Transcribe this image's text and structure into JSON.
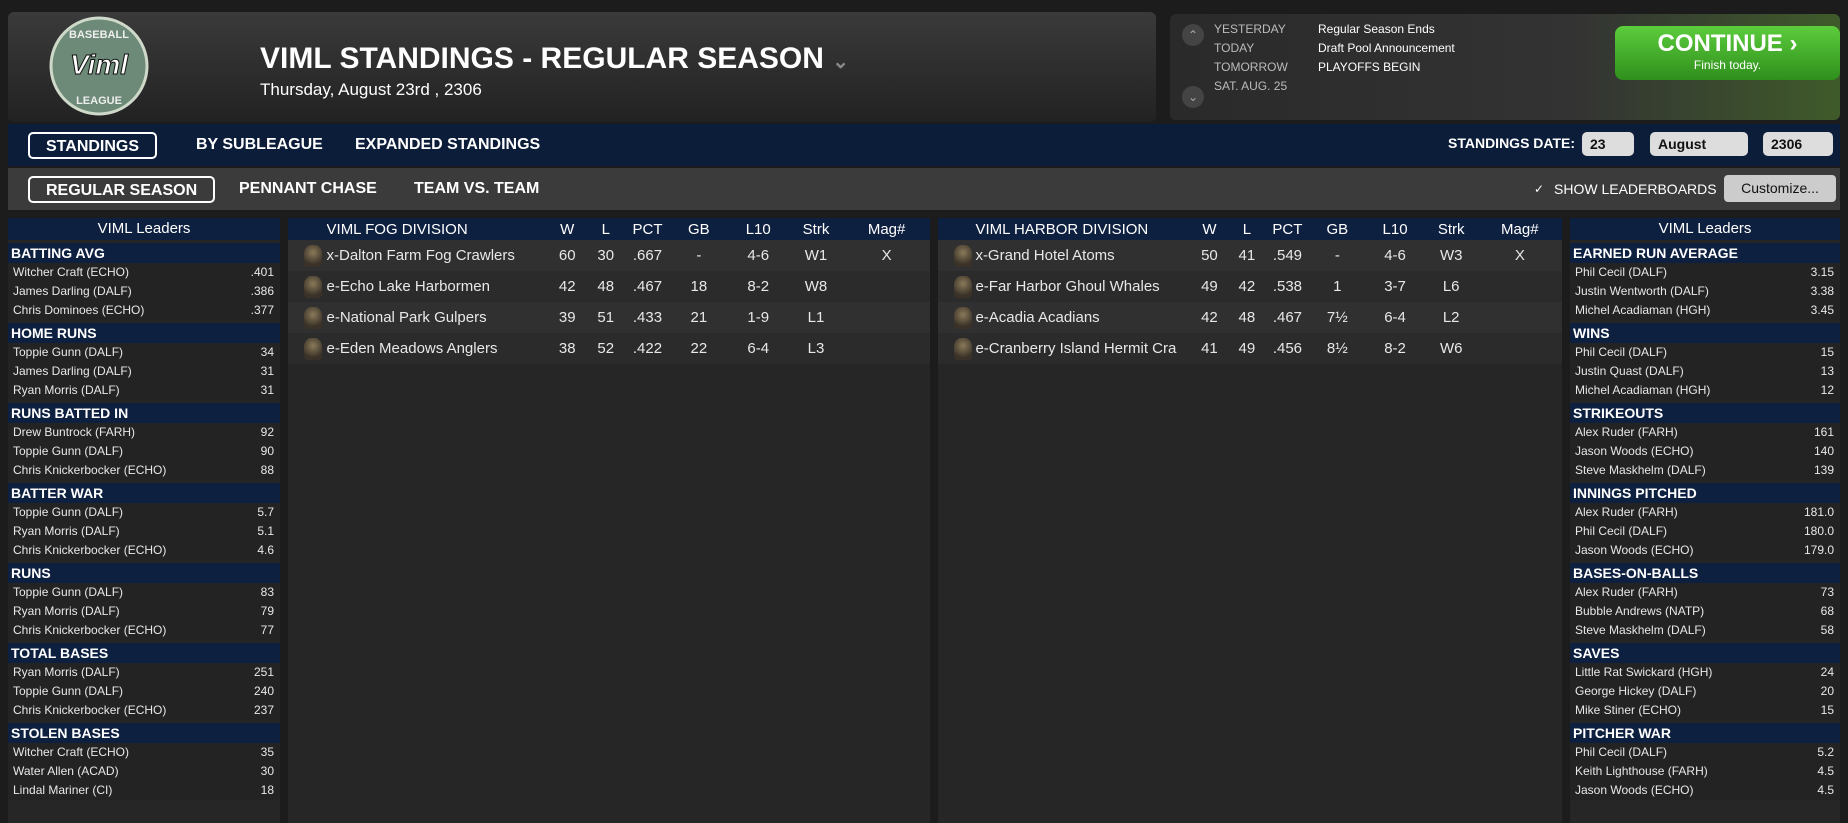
{
  "header": {
    "logo": {
      "top": "BASEBALL",
      "mark": "Viml",
      "bottom": "LEAGUE"
    },
    "title": "VIML STANDINGS - REGULAR SEASON",
    "date": "Thursday, August 23rd , 2306"
  },
  "schedule": [
    {
      "label": "YESTERDAY",
      "event": "Regular Season Ends"
    },
    {
      "label": "TODAY",
      "event": "Draft Pool Announcement"
    },
    {
      "label": "TOMORROW",
      "event": "PLAYOFFS BEGIN"
    },
    {
      "label": "SAT. AUG. 25"
    }
  ],
  "continue": {
    "label": "CONTINUE",
    "sub": "Finish today."
  },
  "tabs": [
    "STANDINGS",
    "BY SUBLEAGUE",
    "EXPANDED STANDINGS"
  ],
  "standings_date": {
    "label": "STANDINGS DATE:",
    "day": "23",
    "month": "August",
    "year": "2306"
  },
  "subtabs": [
    "REGULAR SEASON",
    "PENNANT CHASE",
    "TEAM VS. TEAM"
  ],
  "show_leaderboards": "SHOW LEADERBOARDS",
  "customize": "Customize...",
  "left_leaders": {
    "title": "VIML Leaders",
    "groups": [
      {
        "name": "BATTING AVG",
        "entries": [
          [
            "Witcher Craft (ECHO)",
            ".401"
          ],
          [
            "James Darling (DALF)",
            ".386"
          ],
          [
            "Chris Dominoes (ECHO)",
            ".377"
          ]
        ]
      },
      {
        "name": "HOME RUNS",
        "entries": [
          [
            "Toppie Gunn (DALF)",
            "34"
          ],
          [
            "James Darling (DALF)",
            "31"
          ],
          [
            "Ryan Morris (DALF)",
            "31"
          ]
        ]
      },
      {
        "name": "RUNS BATTED IN",
        "entries": [
          [
            "Drew Buntrock (FARH)",
            "92"
          ],
          [
            "Toppie Gunn (DALF)",
            "90"
          ],
          [
            "Chris Knickerbocker (ECHO)",
            "88"
          ]
        ]
      },
      {
        "name": "BATTER WAR",
        "entries": [
          [
            "Toppie Gunn (DALF)",
            "5.7"
          ],
          [
            "Ryan Morris (DALF)",
            "5.1"
          ],
          [
            "Chris Knickerbocker (ECHO)",
            "4.6"
          ]
        ]
      },
      {
        "name": "RUNS",
        "entries": [
          [
            "Toppie Gunn (DALF)",
            "83"
          ],
          [
            "Ryan Morris (DALF)",
            "79"
          ],
          [
            "Chris Knickerbocker (ECHO)",
            "77"
          ]
        ]
      },
      {
        "name": "TOTAL BASES",
        "entries": [
          [
            "Ryan Morris (DALF)",
            "251"
          ],
          [
            "Toppie Gunn (DALF)",
            "240"
          ],
          [
            "Chris Knickerbocker (ECHO)",
            "237"
          ]
        ]
      },
      {
        "name": "STOLEN BASES",
        "entries": [
          [
            "Witcher Craft (ECHO)",
            "35"
          ],
          [
            "Water Allen (ACAD)",
            "30"
          ],
          [
            "Lindal Mariner (CI)",
            "18"
          ]
        ]
      }
    ]
  },
  "right_leaders": {
    "title": "VIML Leaders",
    "groups": [
      {
        "name": "EARNED RUN AVERAGE",
        "entries": [
          [
            "Phil Cecil (DALF)",
            "3.15"
          ],
          [
            "Justin Wentworth (DALF)",
            "3.38"
          ],
          [
            "Michel Acadiaman (HGH)",
            "3.45"
          ]
        ]
      },
      {
        "name": "WINS",
        "entries": [
          [
            "Phil Cecil (DALF)",
            "15"
          ],
          [
            "Justin Quast (DALF)",
            "13"
          ],
          [
            "Michel Acadiaman (HGH)",
            "12"
          ]
        ]
      },
      {
        "name": "STRIKEOUTS",
        "entries": [
          [
            "Alex Ruder (FARH)",
            "161"
          ],
          [
            "Jason Woods (ECHO)",
            "140"
          ],
          [
            "Steve Maskhelm (DALF)",
            "139"
          ]
        ]
      },
      {
        "name": "INNINGS PITCHED",
        "entries": [
          [
            "Alex Ruder (FARH)",
            "181.0"
          ],
          [
            "Phil Cecil (DALF)",
            "180.0"
          ],
          [
            "Jason Woods (ECHO)",
            "179.0"
          ]
        ]
      },
      {
        "name": "BASES-ON-BALLS",
        "entries": [
          [
            "Alex Ruder (FARH)",
            "73"
          ],
          [
            "Bubble Andrews (NATP)",
            "68"
          ],
          [
            "Steve Maskhelm (DALF)",
            "58"
          ]
        ]
      },
      {
        "name": "SAVES",
        "entries": [
          [
            "Little Rat Swickard (HGH)",
            "24"
          ],
          [
            "George Hickey (DALF)",
            "20"
          ],
          [
            "Mike Stiner (ECHO)",
            "15"
          ]
        ]
      },
      {
        "name": "PITCHER WAR",
        "entries": [
          [
            "Phil Cecil (DALF)",
            "5.2"
          ],
          [
            "Keith Lighthouse (FARH)",
            "4.5"
          ],
          [
            "Jason Woods (ECHO)",
            "4.5"
          ]
        ]
      }
    ]
  },
  "divisions": [
    {
      "columns": [
        "VIML FOG DIVISION",
        "W",
        "L",
        "PCT",
        "GB",
        "L10",
        "Strk",
        "Mag#"
      ],
      "rows": [
        [
          "x-Dalton Farm Fog Crawlers",
          "60",
          "30",
          ".667",
          "-",
          "4-6",
          "W1",
          "X"
        ],
        [
          "e-Echo Lake Harbormen",
          "42",
          "48",
          ".467",
          "18",
          "8-2",
          "W8"
        ],
        [
          "e-National Park Gulpers",
          "39",
          "51",
          ".433",
          "21",
          "1-9",
          "L1"
        ],
        [
          "e-Eden Meadows Anglers",
          "38",
          "52",
          ".422",
          "22",
          "6-4",
          "L3"
        ]
      ]
    },
    {
      "columns": [
        "VIML HARBOR DIVISION",
        "W",
        "L",
        "PCT",
        "GB",
        "L10",
        "Strk",
        "Mag#"
      ],
      "rows": [
        [
          "x-Grand Hotel Atoms",
          "50",
          "41",
          ".549",
          "-",
          "4-6",
          "W3",
          "X"
        ],
        [
          "e-Far Harbor Ghoul Whales",
          "49",
          "42",
          ".538",
          "1",
          "3-7",
          "L6"
        ],
        [
          "e-Acadia Acadians",
          "42",
          "48",
          ".467",
          "7½",
          "6-4",
          "L2"
        ],
        [
          "e-Cranberry Island Hermit Cra",
          "41",
          "49",
          ".456",
          "8½",
          "8-2",
          "W6"
        ]
      ]
    }
  ]
}
